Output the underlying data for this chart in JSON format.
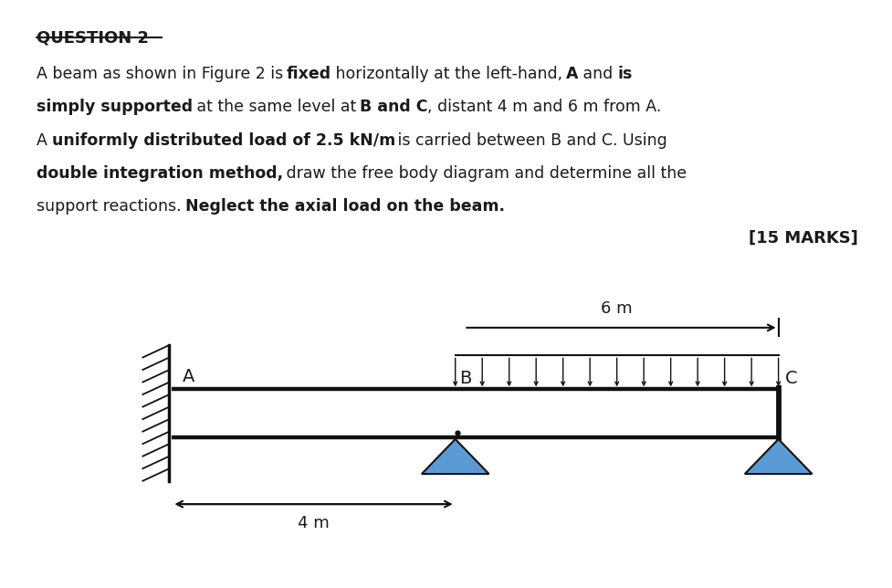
{
  "title": "QUESTION 2",
  "marks_text": "[15 MARKS]",
  "bg_color": "#ffffff",
  "text_color": "#1a1a1a",
  "beam_color": "#111111",
  "triangle_color": "#5b9bd5",
  "label_A": "A",
  "label_B": "B",
  "label_C": "C",
  "dim_4m": "4 m",
  "dim_6m": "6 m",
  "n_load_arrows": 13,
  "lines": [
    [
      [
        "A beam as shown in Figure 2 is ",
        false
      ],
      [
        "fixed",
        true
      ],
      [
        " horizontally at the left-hand, ",
        false
      ],
      [
        "A",
        true
      ],
      [
        " and ",
        false
      ],
      [
        "is",
        true
      ]
    ],
    [
      [
        "simply supported",
        true
      ],
      [
        " at the same level at ",
        false
      ],
      [
        "B and C",
        true
      ],
      [
        ", distant 4 m and 6 m from A.",
        false
      ]
    ],
    [
      [
        "A ",
        false
      ],
      [
        "uniformly distributed load of 2.5 kN/m",
        true
      ],
      [
        " is carried between B and C. Using",
        false
      ]
    ],
    [
      [
        "double integration method,",
        true
      ],
      [
        " draw the free body diagram and determine all the",
        false
      ]
    ],
    [
      [
        "support reactions. ",
        false
      ],
      [
        "Neglect the axial load on the beam.",
        true
      ]
    ]
  ]
}
